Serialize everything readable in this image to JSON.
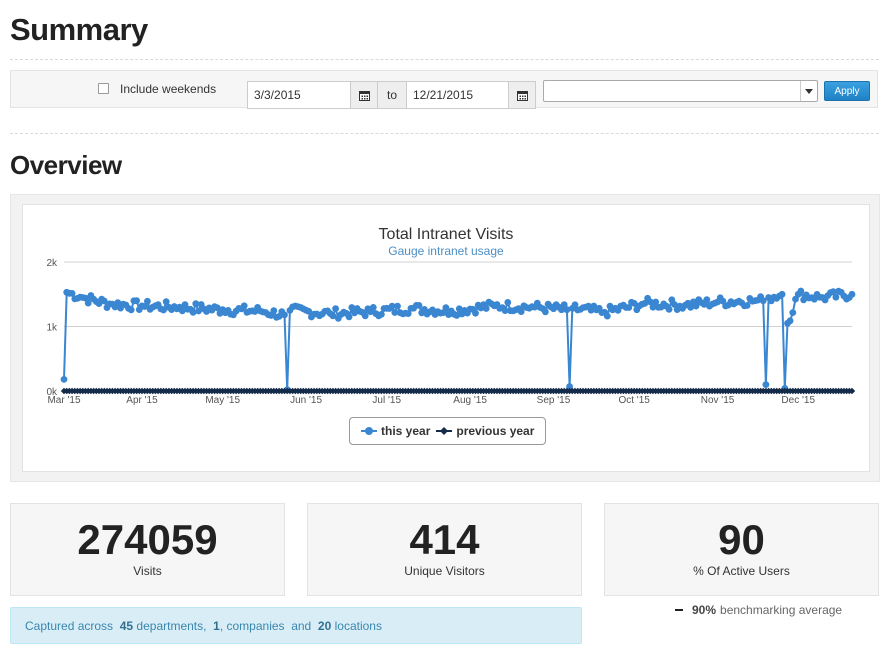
{
  "summary": {
    "title": "Summary"
  },
  "filters": {
    "include_weekends_label": "Include weekends",
    "start_date": "3/3/2015",
    "to_label": "to",
    "end_date": "12/21/2015",
    "select_value": "",
    "apply_label": "Apply"
  },
  "overview": {
    "title": "Overview"
  },
  "chart_data": {
    "type": "line",
    "title": "Total Intranet Visits",
    "subtitle": "Gauge intranet usage",
    "x_ticks": [
      "Mar '15",
      "Apr '15",
      "May '15",
      "Jun '15",
      "Jul '15",
      "Aug '15",
      "Sep '15",
      "Oct '15",
      "Nov '15",
      "Dec '15"
    ],
    "y_ticks": [
      "0k",
      "1k",
      "2k"
    ],
    "ylim": [
      0,
      2000
    ],
    "x_range": [
      "2015-03-03",
      "2015-12-21"
    ],
    "legend_position": "bottom-center",
    "grid": true,
    "series": [
      {
        "name": "this year",
        "color": "#3a86d1",
        "anchors": [
          [
            "2015-03-03",
            180
          ],
          [
            "2015-03-04",
            1530
          ],
          [
            "2015-03-10",
            1450
          ],
          [
            "2015-03-20",
            1350
          ],
          [
            "2015-04-01",
            1320
          ],
          [
            "2015-04-15",
            1300
          ],
          [
            "2015-05-01",
            1260
          ],
          [
            "2015-05-15",
            1240
          ],
          [
            "2015-05-24",
            1180
          ],
          [
            "2015-05-25",
            20
          ],
          [
            "2015-05-26",
            1250
          ],
          [
            "2015-06-10",
            1200
          ],
          [
            "2015-06-25",
            1230
          ],
          [
            "2015-07-10",
            1280
          ],
          [
            "2015-07-25",
            1240
          ],
          [
            "2015-08-10",
            1320
          ],
          [
            "2015-08-25",
            1300
          ],
          [
            "2015-09-06",
            1260
          ],
          [
            "2015-09-07",
            70
          ],
          [
            "2015-09-08",
            1280
          ],
          [
            "2015-09-20",
            1220
          ],
          [
            "2015-10-05",
            1360
          ],
          [
            "2015-10-20",
            1330
          ],
          [
            "2015-11-01",
            1380
          ],
          [
            "2015-11-15",
            1400
          ],
          [
            "2015-11-18",
            1400
          ],
          [
            "2015-11-19",
            100
          ],
          [
            "2015-11-20",
            1450
          ],
          [
            "2015-11-25",
            1500
          ],
          [
            "2015-11-26",
            40
          ],
          [
            "2015-11-27",
            1050
          ],
          [
            "2015-12-01",
            1500
          ],
          [
            "2015-12-10",
            1450
          ],
          [
            "2015-12-21",
            1500
          ]
        ]
      },
      {
        "name": "previous year",
        "color": "#152b4a",
        "anchors": [
          [
            "2015-03-03",
            0
          ],
          [
            "2015-12-21",
            0
          ]
        ]
      }
    ]
  },
  "stats": [
    {
      "value": "274059",
      "label": "Visits"
    },
    {
      "value": "414",
      "label": "Unique Visitors"
    },
    {
      "value": "90",
      "label": "% Of Active Users"
    }
  ],
  "info": {
    "prefix": "Captured across",
    "departments_count": "45",
    "departments_label": "departments,",
    "companies_count": "1",
    "companies_label": ", companies",
    "and_label": "and",
    "locations_count": "20",
    "locations_label": "locations"
  },
  "benchmark": {
    "value": "90%",
    "label": "benchmarking average"
  },
  "icons": {
    "calendar": "calendar-icon",
    "dropdown": "chevron-down-icon"
  }
}
